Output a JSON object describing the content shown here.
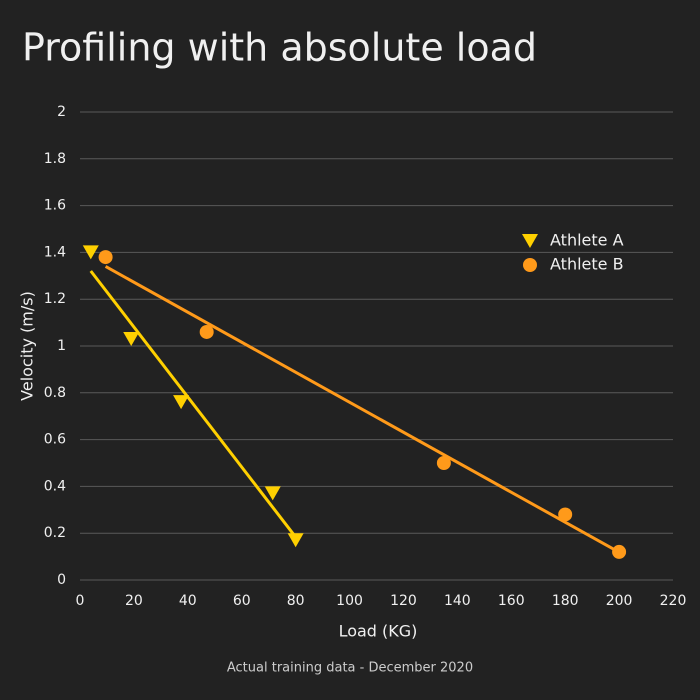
{
  "chart_data": {
    "type": "scatter",
    "title": "Profiling with absolute load",
    "footnote": "Actual training data - December 2020",
    "xlabel": "Load (KG)",
    "ylabel": "Velocity (m/s)",
    "xlim": [
      0,
      220
    ],
    "xticks": [
      0,
      20,
      40,
      60,
      80,
      100,
      120,
      140,
      160,
      180,
      200,
      220
    ],
    "ylim": [
      0,
      2
    ],
    "yticks": [
      0,
      0.2,
      0.4,
      0.6,
      0.8,
      1,
      1.2,
      1.4,
      1.6,
      1.8,
      2
    ],
    "grid": true,
    "trendline": true,
    "legend": "upper right",
    "series": [
      {
        "name": "Athlete A",
        "color": "#ffd000",
        "marker": "triangle-down",
        "x": [
          4,
          19,
          37.5,
          71.5,
          80
        ],
        "y": [
          1.4,
          1.03,
          0.76,
          0.37,
          0.17
        ]
      },
      {
        "name": "Athlete B",
        "color": "#ff9a1a",
        "marker": "circle",
        "x": [
          9.5,
          47,
          135,
          180,
          200
        ],
        "y": [
          1.38,
          1.06,
          0.5,
          0.28,
          0.12
        ]
      }
    ]
  }
}
